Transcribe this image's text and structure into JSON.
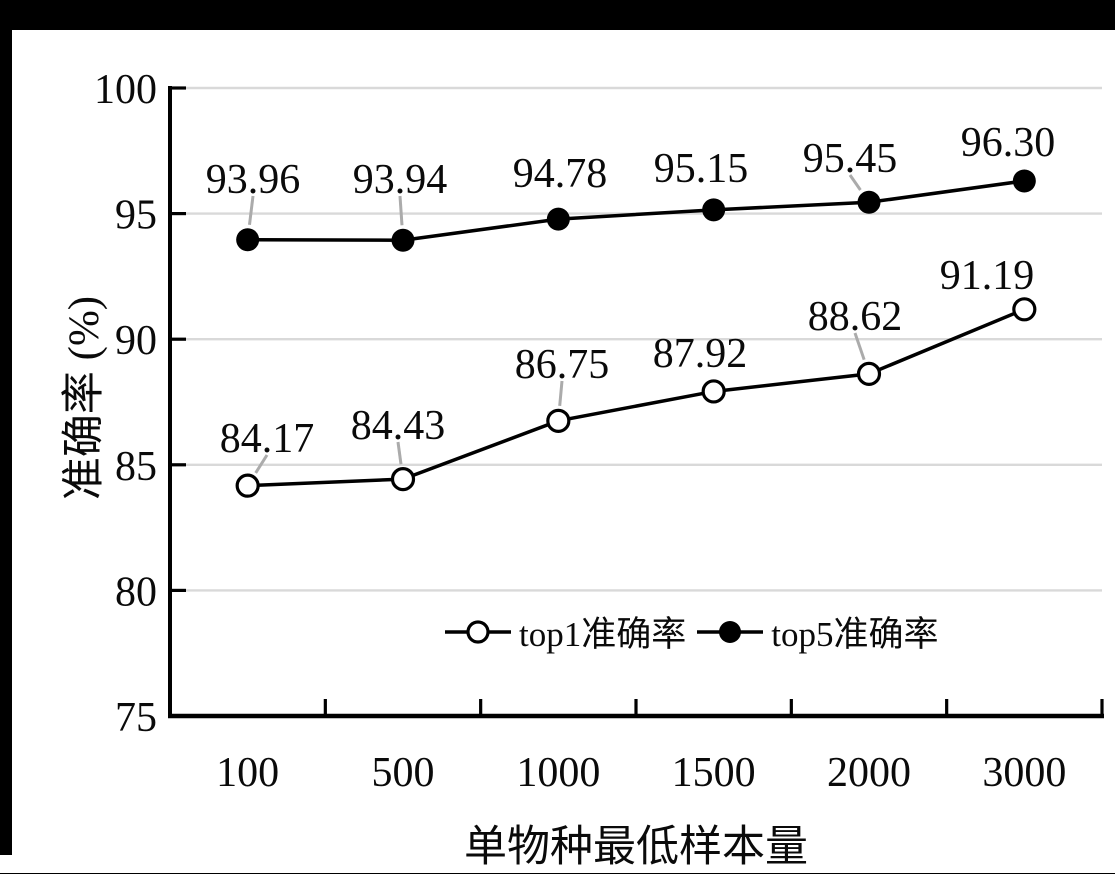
{
  "figure": {
    "background_color": "#000000",
    "panel_color": "#ffffff"
  },
  "chart_data": {
    "type": "line",
    "title": "",
    "categories": [
      "100",
      "500",
      "1000",
      "1500",
      "2000",
      "3000"
    ],
    "xlabel": "单物种最低样本量",
    "ylabel": "准确率 (%)",
    "ylim": [
      75,
      100
    ],
    "ytick_step": 5,
    "ytick_labels": [
      "75",
      "80",
      "85",
      "90",
      "95",
      "100"
    ],
    "grid": "horizontal",
    "gridline_color": "#d9d9d9",
    "axis_color": "#000000",
    "label_color": "#0a0a0a",
    "leader_color": "#ababab",
    "legend_position": "inside-bottom-right",
    "series": [
      {
        "name": "top1准确率",
        "marker": "open-circle",
        "line_color": "#000000",
        "values": [
          84.17,
          84.43,
          86.75,
          87.92,
          88.62,
          91.19
        ],
        "point_labels": [
          "84.17",
          "84.43",
          "86.75",
          "87.92",
          "88.62",
          "91.19"
        ],
        "label_pos": [
          [
            267,
            437
          ],
          [
            398,
            424
          ],
          [
            562,
            363
          ],
          [
            700,
            352
          ],
          [
            855,
            315
          ],
          [
            987,
            274
          ]
        ],
        "label_leader": [
          true,
          true,
          true,
          false,
          true,
          false
        ]
      },
      {
        "name": "top5准确率",
        "marker": "filled-circle",
        "line_color": "#000000",
        "values": [
          93.96,
          93.94,
          94.78,
          95.15,
          95.45,
          96.3
        ],
        "point_labels": [
          "93.96",
          "93.94",
          "94.78",
          "95.15",
          "95.45",
          "96.30"
        ],
        "label_pos": [
          [
            253,
            178
          ],
          [
            400,
            178
          ],
          [
            560,
            172
          ],
          [
            701,
            167
          ],
          [
            850,
            157
          ],
          [
            1008,
            141
          ]
        ],
        "label_leader": [
          true,
          true,
          false,
          false,
          true,
          false
        ]
      }
    ]
  }
}
